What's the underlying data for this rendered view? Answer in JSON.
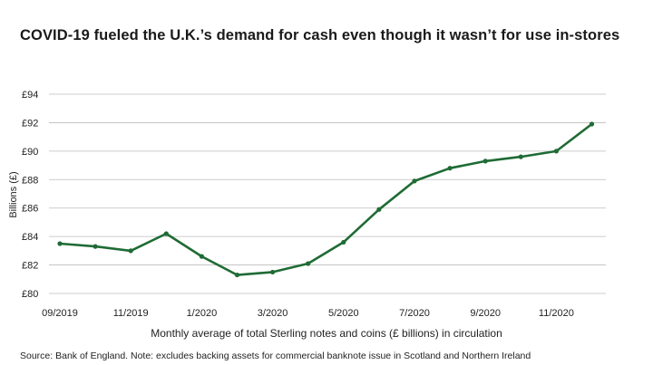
{
  "chart_data": {
    "type": "line",
    "title": "COVID-19 fueled the U.K.’s demand for cash even though it wasn’t for use in-stores",
    "ylabel": "Billions (£)",
    "xlabel": "Monthly average of total Sterling notes and coins (£ billions) in circulation",
    "source": "Source: Bank of England. Note: excludes backing assets for commercial banknote issue in Scotland and Northern Ireland",
    "ylim": [
      80,
      94
    ],
    "yticks": [
      80,
      82,
      84,
      86,
      88,
      90,
      92,
      94
    ],
    "ytick_labels": [
      "£80",
      "£82",
      "£84",
      "£86",
      "£88",
      "£90",
      "£92",
      "£94"
    ],
    "grid": true,
    "x": [
      "09/2019",
      "10/2019",
      "11/2019",
      "12/2019",
      "01/2020",
      "02/2020",
      "03/2020",
      "04/2020",
      "05/2020",
      "06/2020",
      "07/2020",
      "08/2020",
      "09/2020",
      "10/2020",
      "11/2020",
      "12/2020"
    ],
    "xtick_labels": [
      {
        "index": 0,
        "label": "09/2019"
      },
      {
        "index": 2,
        "label": "11/2019"
      },
      {
        "index": 4,
        "label": "1/2020"
      },
      {
        "index": 6,
        "label": "3/2020"
      },
      {
        "index": 8,
        "label": "5/2020"
      },
      {
        "index": 10,
        "label": "7/2020"
      },
      {
        "index": 12,
        "label": "9/2020"
      },
      {
        "index": 14,
        "label": "11/2020"
      }
    ],
    "series": [
      {
        "values": [
          83.5,
          83.3,
          83.0,
          84.2,
          82.6,
          81.3,
          81.5,
          82.1,
          83.6,
          85.9,
          87.9,
          88.8,
          89.3,
          89.6,
          90.0,
          91.9
        ],
        "color": "#1f6b35"
      }
    ]
  }
}
